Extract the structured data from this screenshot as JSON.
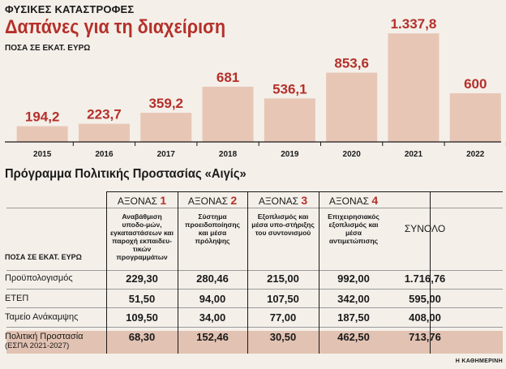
{
  "header": {
    "kicker": "ΦΥΣΙΚΕΣ ΚΑΤΑΣΤΡΟΦΕΣ",
    "title": "Δαπάνες για τη διαχείριση",
    "unit": "ΠΟΣΑ ΣΕ ΕΚΑΤ. ΕΥΡΩ"
  },
  "colors": {
    "bar": "#e8c6b6",
    "accent": "#b5302a",
    "text": "#1a1a1a",
    "shade": "#e2c2b2"
  },
  "chart_data": [
    {
      "type": "bar",
      "title": "Δαπάνες για τη διαχείριση",
      "ylabel": "ΠΟΣΑ ΣΕ ΕΚΑΤ. ΕΥΡΩ",
      "categories": [
        "2015",
        "2016",
        "2017",
        "2018",
        "2019",
        "2020",
        "2021",
        "2022"
      ],
      "values": [
        194.2,
        223.7,
        359.2,
        681,
        536.1,
        853.6,
        1337.8,
        600
      ],
      "value_labels": [
        "194,2",
        "223,7",
        "359,2",
        "681",
        "536,1",
        "853,6",
        "1.337,8",
        "600"
      ],
      "ylim": [
        0,
        1400
      ],
      "grid": false
    },
    {
      "type": "table",
      "title": "Πρόγραμμα Πολιτικής Προστασίας «Αιγίς»",
      "unit_label": "ΠΟΣΑ ΣΕ ΕΚΑΤ. ΕΥΡΩ",
      "columns": [
        {
          "name": "ΑΞΟΝΑΣ",
          "num": "1",
          "desc": "Αναβάθμιση υποδο-μών, εγκαταστάσεων και παροχή εκπαιδευ-τικών προγραμμάτων"
        },
        {
          "name": "ΑΞΟΝΑΣ",
          "num": "2",
          "desc": "Σύστημα προειδοποίησης και μέσα πρόληψης"
        },
        {
          "name": "ΑΞΟΝΑΣ",
          "num": "3",
          "desc": "Εξοπλισμός και μέσα υπο-στήριξης του συντονισμού"
        },
        {
          "name": "ΑΞΟΝΑΣ",
          "num": "4",
          "desc": "Επιχειρησιακός εξοπλισμός και μέσα αντιμετώπισης"
        },
        {
          "name": "ΣΥΝΟΛΟ",
          "num": "",
          "desc": ""
        }
      ],
      "rows": [
        {
          "label": "Προϋπολογισμός",
          "label2": "",
          "values": [
            "229,30",
            "280,46",
            "215,00",
            "992,00",
            "1.716,76"
          ]
        },
        {
          "label": "ΕΤΕΠ",
          "label2": "",
          "values": [
            "51,50",
            "94,00",
            "107,50",
            "342,00",
            "595,00"
          ]
        },
        {
          "label": "Ταμείο Ανάκαμψης",
          "label2": "",
          "values": [
            "109,50",
            "34,00",
            "77,00",
            "187,50",
            "408,00"
          ]
        },
        {
          "label": "Πολιτική Προστασία",
          "label2": "(ΕΣΠΑ 2021-2027)",
          "values": [
            "68,30",
            "152,46",
            "30,50",
            "462,50",
            "713,76"
          ]
        }
      ]
    }
  ],
  "credit": "Η ΚΑΘΗΜΕΡΙΝΗ"
}
